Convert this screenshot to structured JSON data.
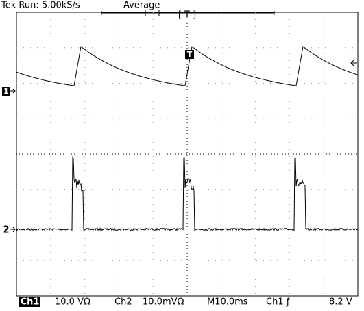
{
  "header": {
    "status": "Tek Run: 5.00kS/s",
    "mode": "Average",
    "trigger_position": "[ T ]"
  },
  "markers": {
    "ch1": "1",
    "ch2": "2",
    "trigger": "T"
  },
  "footer": {
    "ch1_label": "Ch1",
    "ch1_scale": "10.0 VΩ",
    "ch2_label": "Ch2",
    "ch2_scale": "10.0mVΩ",
    "timebase": "M10.0ms",
    "trigger_source": "Ch1 ƒ",
    "trigger_level": "8.2 V"
  }
}
